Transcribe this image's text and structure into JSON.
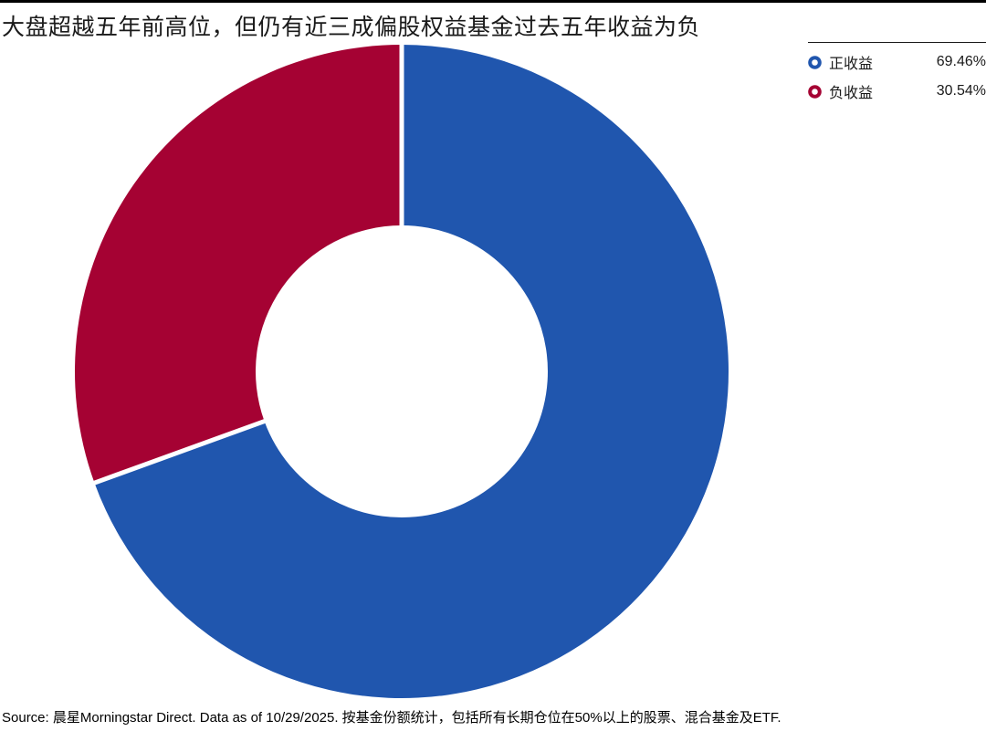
{
  "page": {
    "title": "大盘超越五年前高位，但仍有近三成偏股权益基金过去五年收益为负",
    "source": "Source: 晨星Morningstar Direct. Data as of 10/29/2025. 按基金份额统计，包括所有长期仓位在50%以上的股票、混合基金及ETF."
  },
  "legend": {
    "items": [
      {
        "label": "正收益",
        "value": "69.46%",
        "color": "#2056AE",
        "icon": "ring-icon"
      },
      {
        "label": "负收益",
        "value": "30.54%",
        "color": "#A50233",
        "icon": "ring-icon"
      }
    ]
  },
  "chart_data": {
    "type": "pie",
    "subtype": "donut",
    "title": "大盘超越五年前高位，但仍有近三成偏股权益基金过去五年收益为负",
    "categories": [
      "正收益",
      "负收益"
    ],
    "values": [
      69.46,
      30.54
    ],
    "unit": "%",
    "colors": [
      "#2056AE",
      "#A50233"
    ],
    "start_angle_deg": 0,
    "direction": "clockwise",
    "inner_radius_ratio": 0.447,
    "slice_gap_color": "#FFFFFF",
    "legend_position": "top-right",
    "source_note": "Source: 晨星Morningstar Direct. Data as of 10/29/2025. 按基金份额统计，包括所有长期仓位在50%以上的股票、混合基金及ETF."
  }
}
